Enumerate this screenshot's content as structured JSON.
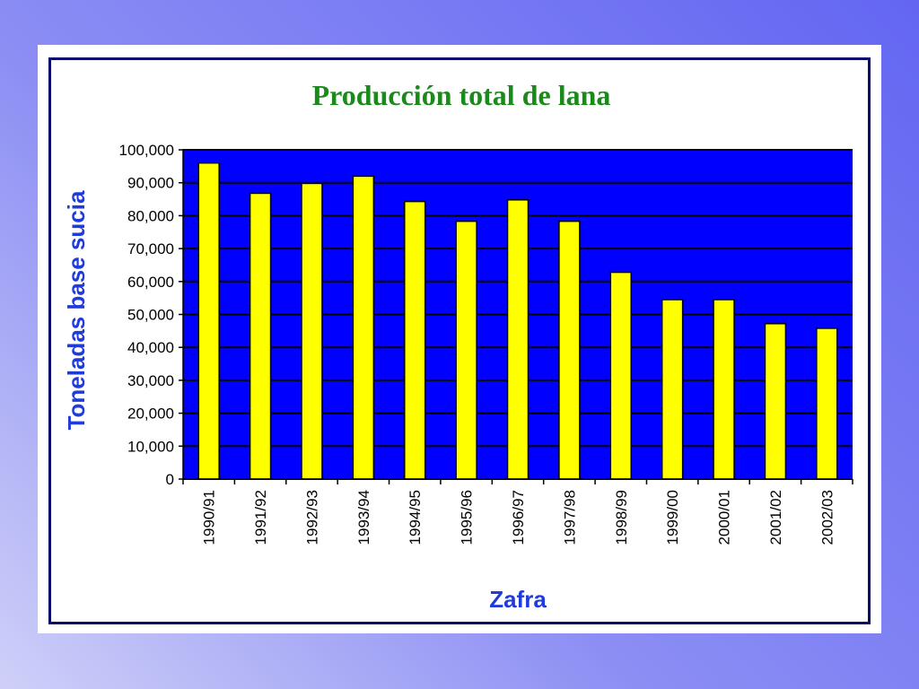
{
  "colors": {
    "plot_bg": "#0000ff",
    "bar_fill": "#ffff00",
    "bar_stroke": "#000000",
    "title": "#1a8a1a",
    "axis_title": "#1f3bdc",
    "frame": "#0b0b6e"
  },
  "chart_data": {
    "type": "bar",
    "title": "Producción total de lana",
    "xlabel": "Zafra",
    "ylabel": "Toneladas base sucia",
    "ylim": [
      0,
      100000
    ],
    "yticks": [
      0,
      10000,
      20000,
      30000,
      40000,
      50000,
      60000,
      70000,
      80000,
      90000,
      100000
    ],
    "ytick_labels": [
      "0",
      "10,000",
      "20,000",
      "30,000",
      "40,000",
      "50,000",
      "60,000",
      "70,000",
      "80,000",
      "90,000",
      "100,000"
    ],
    "grid": true,
    "categories": [
      "1990/91",
      "1991/92",
      "1992/93",
      "1993/94",
      "1994/95",
      "1995/96",
      "1996/97",
      "1997/98",
      "1998/99",
      "1999/00",
      "2000/01",
      "2001/02",
      "2002/03"
    ],
    "values": [
      96000,
      86800,
      89800,
      92000,
      84300,
      78300,
      84800,
      78300,
      62800,
      54500,
      54500,
      47200,
      45800
    ]
  }
}
